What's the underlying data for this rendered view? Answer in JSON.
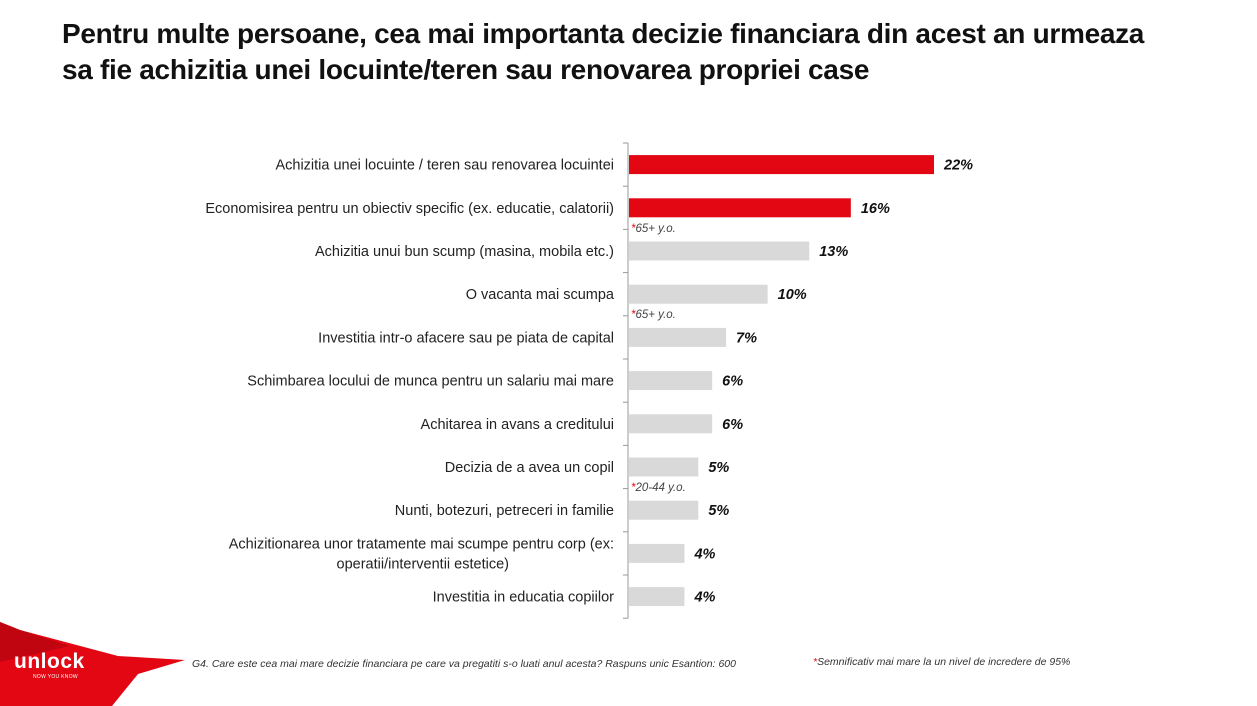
{
  "title": "Pentru multe persoane, cea mai importanta decizie financiara din acest an urmeaza sa fie achizitia unei locuinte/teren sau renovarea propriei case",
  "chart_data": {
    "type": "bar",
    "orientation": "horizontal",
    "categories": [
      "Achizitia unei locuinte / teren sau renovarea locuintei",
      "Economisirea pentru un obiectiv specific (ex. educatie, calatorii)",
      "Achizitia unui bun scump (masina, mobila etc.)",
      "O vacanta mai scumpa",
      "Investitia intr-o afacere sau pe piata de capital",
      "Schimbarea locului de munca pentru un salariu mai mare",
      "Achitarea in avans a creditului",
      "Decizia de a avea un copil",
      "Nunti, botezuri, petreceri in familie",
      "Achizitionarea unor tratamente mai scumpe pentru corp (ex: operatii/interventii estetice)",
      "Investitia in educatia copiilor"
    ],
    "values": [
      22,
      16,
      13,
      10,
      7,
      6,
      6,
      5,
      5,
      4,
      4
    ],
    "value_labels": [
      "22%",
      "16%",
      "13%",
      "10%",
      "7%",
      "6%",
      "6%",
      "5%",
      "5%",
      "4%",
      "4%"
    ],
    "highlighted": [
      true,
      true,
      false,
      false,
      false,
      false,
      false,
      false,
      false,
      false,
      false
    ],
    "notes": [
      "",
      "65+ y.o.",
      "",
      "65+ y.o.",
      "",
      "",
      "",
      "20-44 y.o.",
      "",
      "",
      ""
    ],
    "colors": {
      "highlight": "#e30613",
      "default": "#d9d9d9",
      "note_star": "#e30613",
      "axis": "#999999"
    },
    "xlim": [
      0,
      22
    ]
  },
  "footnotes": {
    "question": "G4. Care este cea mai mare decizie financiara pe care va pregatiti s-o luati anul acesta? Raspuns unic  Esantion: 600",
    "significance_star": "*",
    "significance": "Semnificativ mai mare la un nivel de incredere de 95%"
  },
  "logo": {
    "text": "unlock",
    "tagline": "NOW YOU KNOW",
    "color": "#e30613"
  }
}
